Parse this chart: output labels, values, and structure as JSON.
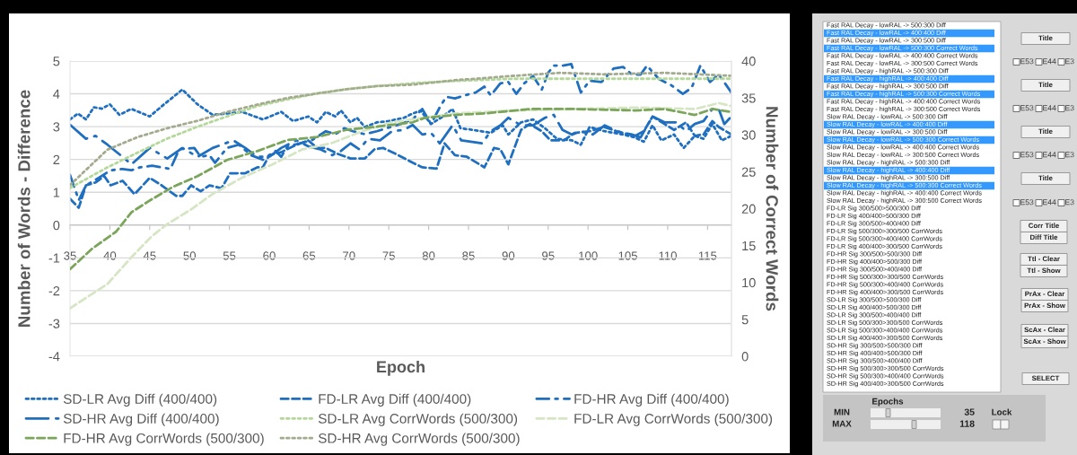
{
  "chart_data": [
    {
      "type": "line",
      "xlabel": "Epoch",
      "ylabel": "Number of Words - Difference",
      "y2label": "Number of Correct Words",
      "xlim": [
        35,
        118
      ],
      "xticks": [
        35,
        40,
        45,
        50,
        55,
        60,
        65,
        70,
        75,
        80,
        85,
        90,
        95,
        100,
        105,
        110,
        115
      ],
      "ylim": [
        -4,
        5
      ],
      "yticks": [
        -4,
        -3,
        -2,
        -1,
        0,
        1,
        2,
        3,
        4,
        5
      ],
      "y2lim": [
        0,
        40
      ],
      "y2ticks": [
        0,
        5,
        10,
        15,
        20,
        25,
        30,
        35,
        40
      ],
      "grid": "y",
      "legend": "bottom",
      "series": [
        {
          "name": "SD-LR Avg Diff (400/400)",
          "color": "#1f6fc0",
          "line_style": "dotted",
          "x": [
            35,
            36,
            37,
            38,
            39,
            40,
            41.2,
            42.7,
            45,
            46.8,
            49.1,
            51,
            52.9,
            54.7,
            56.6,
            59.2,
            61.5,
            63,
            64.9,
            66,
            67.1,
            68.3,
            69,
            70.2,
            71,
            72,
            73.5,
            75,
            76.9,
            78,
            79,
            80.3,
            81.8,
            83,
            84,
            85.6,
            87.8,
            89.3,
            90,
            91.6,
            93.1,
            94.6,
            96.1,
            98,
            99.1,
            100.2,
            102.1,
            104.4,
            105.9,
            107,
            108.1,
            109.2,
            110.8,
            112,
            113.4,
            114.5,
            115.6,
            116.8,
            118
          ],
          "values": [
            3.22,
            3.4,
            3.22,
            3.59,
            3.55,
            3.68,
            3.36,
            3.54,
            3.31,
            3.68,
            4.13,
            3.68,
            3.36,
            3.4,
            3.45,
            3.22,
            3.45,
            3.17,
            3.31,
            3.13,
            3.45,
            3.31,
            3.49,
            3.13,
            3.27,
            2.99,
            3.13,
            3.17,
            3.27,
            3.4,
            3.49,
            3.08,
            3.31,
            3.54,
            2.95,
            2.9,
            2.81,
            3.04,
            2.76,
            3.13,
            3.22,
            2.95,
            2.63,
            2.58,
            2.45,
            2.99,
            2.86,
            2.76,
            2.67,
            2.54,
            3.04,
            2.58,
            2.76,
            2.35,
            2.72,
            2.63,
            3.08,
            2.58,
            2.72
          ]
        },
        {
          "name": "FD-LR Avg Diff (400/400)",
          "color": "#1f6fc0",
          "line_style": "dashed",
          "x": [
            35,
            36.1,
            37,
            38.2,
            39.3,
            40.1,
            41.6,
            43.1,
            45,
            46.5,
            48.3,
            49.1,
            50.2,
            51.4,
            52.5,
            54,
            55.1,
            57,
            58.5,
            59.2,
            60,
            61.5,
            63,
            64.9,
            66,
            67.1,
            68.6,
            70.2,
            72,
            73.2,
            74.3,
            76.2,
            78,
            79.2,
            81,
            82,
            83.3,
            84.8,
            87,
            88.2,
            89,
            90,
            91.6,
            92.7,
            94.2,
            95.3,
            97,
            98.3,
            100.2,
            102,
            103.6,
            105.9,
            107,
            108.1,
            109.6,
            110.8,
            112.3,
            113.4,
            114.5,
            115.6,
            116.4,
            118
          ],
          "values": [
            0.8,
            0.53,
            1.21,
            1.3,
            1.49,
            1.21,
            1.35,
            0.94,
            1.44,
            1.21,
            0.89,
            0.89,
            1.21,
            1.03,
            1.21,
            1.12,
            1.58,
            1.58,
            1.76,
            1.76,
            2.13,
            2.22,
            2.4,
            2.58,
            2.35,
            2.35,
            2.17,
            2.03,
            2.03,
            2.31,
            2.35,
            2.13,
            1.9,
            1.76,
            1.72,
            2.49,
            2.13,
            2.08,
            1.76,
            2.35,
            2.31,
            1.85,
            2.9,
            3.08,
            2.86,
            2.58,
            2.58,
            2.81,
            2.86,
            2.99,
            2.86,
            2.72,
            2.86,
            3.31,
            3.08,
            2.9,
            3.13,
            2.72,
            2.76,
            3.17,
            2.99,
            2.76
          ]
        },
        {
          "name": "FD-HR Avg Diff (400/400)",
          "color": "#1f6fc0",
          "line_style": "dashdot",
          "x": [
            35,
            36.1,
            37,
            38.6,
            40.1,
            41.6,
            42.7,
            43.8,
            45.3,
            47.6,
            48.7,
            50.6,
            51.4,
            52.5,
            53.2,
            54.7,
            56.2,
            57.7,
            59.2,
            60.8,
            61.5,
            62.3,
            63.8,
            65.3,
            67.1,
            68.3,
            69.4,
            70.5,
            72,
            73.5,
            74.7,
            76.5,
            78,
            79.2,
            80.3,
            81.4,
            82.2,
            83.3,
            85.2,
            85.9,
            87,
            87.8,
            89,
            90,
            91,
            92,
            93.1,
            94.2,
            95,
            95.7,
            96.8,
            97.9,
            99.1,
            100.2,
            101.7,
            103.2,
            104.4,
            105.5,
            106.6,
            107.4,
            108.9,
            110.4,
            111.9,
            113,
            114.1,
            115.3,
            116.4,
            118
          ],
          "values": [
            1.53,
            0.76,
            1.21,
            1.44,
            1.67,
            1.71,
            1.67,
            1.76,
            1.81,
            1.71,
            2.31,
            2.35,
            2.08,
            2.13,
            1.9,
            2.35,
            2.45,
            2.13,
            1.99,
            2.26,
            2.08,
            2.4,
            2.49,
            2.58,
            2.86,
            2.77,
            2.95,
            2.86,
            2.77,
            2.86,
            2.95,
            3.08,
            3.22,
            3.54,
            3.08,
            3.59,
            3.91,
            3.86,
            4.0,
            4.04,
            4.22,
            3.95,
            4.32,
            4.36,
            4.0,
            4.32,
            4.54,
            4.13,
            4.64,
            4.86,
            4.86,
            4.91,
            4.04,
            4.4,
            4.36,
            4.77,
            4.82,
            4.59,
            4.59,
            4.86,
            4.45,
            4.27,
            4.0,
            4.18,
            4.86,
            4.36,
            4.59,
            4.04
          ]
        },
        {
          "name": "SD-HR Avg Diff (400/400)",
          "color": "#1f6fc0",
          "line_style": "longdashdot",
          "x": [
            35,
            37,
            38.2,
            39.7,
            41.6,
            42.7,
            45,
            47.2,
            49.1,
            51,
            52.9,
            55.5,
            57,
            58.5,
            60,
            61.5,
            63.4,
            64.9,
            66.4,
            67.9,
            69,
            70.2,
            71.3,
            72.4,
            73.9,
            75.4,
            76.9,
            78,
            79.2,
            80.3,
            81.4,
            83,
            84.1,
            86.7,
            87.8,
            89,
            90,
            91.6,
            93.1,
            94.6,
            95.7,
            96.8,
            98,
            99.1,
            100.6,
            102.1,
            103.6,
            105.5,
            106.6,
            108.1,
            109.6,
            111.1,
            112.3,
            113.4,
            114.5,
            115.6,
            116.4,
            117.1,
            118
          ],
          "values": [
            3.06,
            2.63,
            2.72,
            2.45,
            2.08,
            1.85,
            2.35,
            2.03,
            2.35,
            2.08,
            2.35,
            2.58,
            2.35,
            2.08,
            2.08,
            2.35,
            2.58,
            2.4,
            2.31,
            2.13,
            2.26,
            2.49,
            2.31,
            2.63,
            2.58,
            2.86,
            2.9,
            3.05,
            2.76,
            2.81,
            2.49,
            3.04,
            2.58,
            2.49,
            2.86,
            3.04,
            3.27,
            3.04,
            3.04,
            3.27,
            3.36,
            2.9,
            2.76,
            2.86,
            2.76,
            3.04,
            2.86,
            2.76,
            2.67,
            3.31,
            3.13,
            3.13,
            2.86,
            3.08,
            3.17,
            3.54,
            3.54,
            3.08,
            3.31
          ]
        },
        {
          "name": "SD-LR Avg CorrWords (500/300)",
          "color": "#b4d89a",
          "line_style": "dotted",
          "axis": "y2",
          "x": [
            35,
            39.7,
            43.5,
            47.2,
            51,
            54.7,
            58.5,
            62.3,
            66,
            69.8,
            73.5,
            78,
            83.3,
            90.8,
            98.3,
            105.9,
            113.4,
            118
          ],
          "values": [
            22.8,
            25.6,
            27.6,
            29.5,
            31.1,
            32.5,
            33.9,
            34.8,
            35.6,
            36.2,
            36.6,
            37.0,
            37.3,
            37.6,
            37.6,
            37.6,
            37.6,
            37.6
          ]
        },
        {
          "name": "FD-LR Avg CorrWords (500/300)",
          "color": "#d6e6c4",
          "line_style": "dashed",
          "axis": "y2",
          "x": [
            35,
            39.7,
            42.7,
            45.3,
            47.2,
            50.2,
            52.9,
            56.6,
            60.4,
            64.1,
            67.9,
            71.7,
            75.4,
            78,
            83.3,
            90.8,
            98.3,
            105.9,
            113.4,
            116.4,
            118
          ],
          "values": [
            6.5,
            9.8,
            13.4,
            16.3,
            17.9,
            19.9,
            22.0,
            24.2,
            26.0,
            28.0,
            28.9,
            30.5,
            31.7,
            32.1,
            32.9,
            33.3,
            33.5,
            33.7,
            33.5,
            34.3,
            33.9
          ]
        },
        {
          "name": "FD-HR Avg CorrWords (500/300)",
          "color": "#7aa55a",
          "line_style": "dashed",
          "axis": "y2",
          "x": [
            35,
            37.8,
            40.8,
            42.7,
            45,
            48,
            51,
            54.7,
            58.5,
            62.3,
            66,
            69.8,
            73.5,
            78,
            79.5,
            83.3,
            87,
            92.7,
            98.3,
            105.9,
            109.6,
            113.4,
            115.6,
            118
          ],
          "values": [
            11.8,
            14.6,
            16.9,
            19.5,
            21.1,
            23.0,
            24.4,
            26.6,
            27.8,
            29.3,
            29.7,
            30.7,
            31.1,
            31.7,
            32.3,
            32.7,
            32.9,
            33.5,
            33.5,
            33.3,
            33.5,
            32.7,
            33.5,
            33.1
          ]
        },
        {
          "name": "SD-HR Avg CorrWords (500/300)",
          "color": "#a3ab8e",
          "line_style": "dotted",
          "axis": "y2",
          "x": [
            35,
            39.7,
            43.5,
            47.2,
            51,
            54.7,
            58.5,
            62.3,
            66,
            69.8,
            73.5,
            78,
            83.3,
            90.8,
            96.5,
            102,
            109.6,
            118
          ],
          "values": [
            23.2,
            28.0,
            29.7,
            30.9,
            31.9,
            33.1,
            34.1,
            35.0,
            35.6,
            36.2,
            36.6,
            36.8,
            37.4,
            38.0,
            38.4,
            38.2,
            38.4,
            38.0
          ]
        }
      ]
    },
    {
      "type": "other",
      "categories": [
        "Fast RAL Decay - lowRAL -> 500:300 Diff",
        "Fast RAL Decay - lowRAL -> 400:400 Diff",
        "Fast RAL Decay - lowRAL -> 300:500 Diff",
        "Fast RAL Decay - lowRAL -> 500:300 Correct Words",
        "Fast RAL Decay - lowRAL -> 400:400 Correct Words",
        "Fast RAL Decay - lowRAL -> 300:500 Correct Words",
        "Fast RAL Decay - highRAL -> 500:300 Diff",
        "Fast RAL Decay - highRAL -> 400:400 Diff",
        "Fast RAL Decay - highRAL -> 300:500 Diff",
        "Fast RAL Decay - highRAL -> 500:300 Correct Words",
        "Fast RAL Decay - highRAL -> 400:400 Correct Words",
        "Fast RAL Decay - highRAL -> 300:500 Correct Words",
        "Slow RAL Decay - lowRAL -> 500:300 Diff",
        "Slow RAL Decay - lowRAL -> 400:400 Diff",
        "Slow RAL Decay - lowRAL -> 300:500 Diff",
        "Slow RAL Decay - lowRAL -> 500:300 Correct Words",
        "Slow RAL Decay - lowRAL -> 400:400 Correct Words",
        "Slow RAL Decay - lowRAL -> 300:500 Correct Words",
        "Slow RAL Decay - highRAL -> 500:300 Diff",
        "Slow RAL Decay - highRAL -> 400:400 Diff",
        "Slow RAL Decay - highRAL -> 300:500 Diff",
        "Slow RAL Decay - highRAL -> 500:300 Correct Words",
        "Slow RAL Decay - highRAL -> 400:400 Correct Words",
        "Slow RAL Decay - highRAL -> 300:500 Correct Words",
        "FD-LR Sig 300/500>500/300 Diff",
        "FD-LR Sig 400/400>500/300 Diff",
        "FD-LR Sig 300/500>400/400 Diff",
        "FD-LR Sig 500/300>300/500 CorrWords",
        "FD-LR Sig 500/300>400/400 CorrWords",
        "FD-LR Sig 400/400>300/500 CorrWords",
        "FD-HR Sig 300/500>500/300 Diff",
        "FD-HR Sig 400/400>500/300 Diff",
        "FD-HR Sig 300/500>400/400 Diff",
        "FD-HR Sig 500/300>300/500 CorrWords",
        "FD-HR Sig 500/300>400/400 CorrWords",
        "FD-HR Sig 400/400>300/500 CorrWords",
        "SD-LR Sig 300/500>500/300 Diff",
        "SD-LR Sig 400/400>500/300 Diff",
        "SD-LR Sig 300/500>400/400 Diff",
        "SD-LR Sig 500/300>300/500 CorrWords",
        "SD-LR Sig 500/300>400/400 CorrWords",
        "SD-LR Sig 400/400>300/500 CorrWords",
        "SD-HR Sig 300/500>500/300 Diff",
        "SD-HR Sig 400/400>500/300 Diff",
        "SD-HR Sig 300/500>400/400 Diff",
        "SD-HR Sig 500/300>300/500 CorrWords",
        "SD-HR Sig 500/300>400/400 CorrWords",
        "SD-HR Sig 400/400>300/500 CorrWords"
      ],
      "colors": [
        "#ffffff",
        "#3399ff",
        "#ffffff",
        "#3399ff",
        "#ffffff",
        "#ffffff",
        "#ffffff",
        "#3399ff",
        "#ffffff",
        "#3399ff",
        "#ffffff",
        "#ffffff",
        "#ffffff",
        "#3399ff",
        "#ffffff",
        "#3399ff",
        "#ffffff",
        "#ffffff",
        "#ffffff",
        "#3399ff",
        "#ffffff",
        "#3399ff",
        "#ffffff",
        "#ffffff",
        "#ffffff",
        "#ffffff",
        "#ffffff",
        "#ffffff",
        "#ffffff",
        "#ffffff",
        "#ffffff",
        "#ffffff",
        "#ffffff",
        "#ffffff",
        "#ffffff",
        "#ffffff",
        "#ffffff",
        "#ffffff",
        "#ffffff",
        "#ffffff",
        "#ffffff",
        "#ffffff",
        "#ffffff",
        "#ffffff",
        "#ffffff",
        "#ffffff",
        "#ffffff",
        "#ffffff"
      ],
      "annotations": [
        "Title",
        "E53",
        "E44",
        "E3",
        "Title",
        "E53",
        "E44",
        "E3",
        "Title",
        "E53",
        "E44",
        "E3",
        "Title",
        "E53",
        "E44",
        "E3",
        "Corr Title",
        "Diff Title",
        "Ttl - Clear",
        "Ttl - Show",
        "PrAx - Clear",
        "PrAx - Show",
        "ScAx - Clear",
        "ScAx - Show",
        "SELECT",
        "Epochs",
        "MIN",
        "35",
        "Lock",
        "MAX",
        "118"
      ]
    }
  ]
}
